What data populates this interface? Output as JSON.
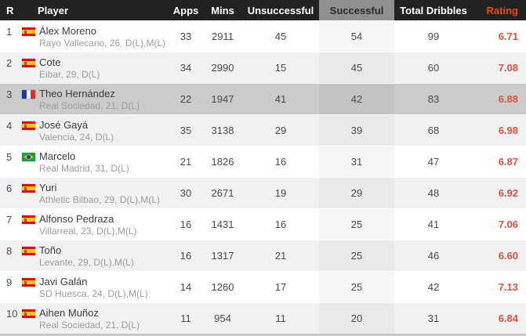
{
  "table": {
    "columns": {
      "rank": "R",
      "player": "Player",
      "apps": "Apps",
      "mins": "Mins",
      "unsuccessful": "Unsuccessful",
      "successful": "Successful",
      "total_dribbles": "Total Dribbles",
      "rating": "Rating"
    },
    "rows": [
      {
        "rank": "1",
        "flag": "spain",
        "name": "Álex Moreno",
        "meta": "Rayo Vallecano, 26, D(L),M(L)",
        "apps": "33",
        "mins": "2911",
        "unsuccessful": "45",
        "successful": "54",
        "total_dribbles": "99",
        "rating": "6.71",
        "highlighted": false
      },
      {
        "rank": "2",
        "flag": "spain",
        "name": "Cote",
        "meta": "Eibar, 29, D(L)",
        "apps": "34",
        "mins": "2990",
        "unsuccessful": "15",
        "successful": "45",
        "total_dribbles": "60",
        "rating": "7.08",
        "highlighted": false
      },
      {
        "rank": "3",
        "flag": "france",
        "name": "Theo Hernández",
        "meta": "Real Sociedad, 21, D(L)",
        "apps": "22",
        "mins": "1947",
        "unsuccessful": "41",
        "successful": "42",
        "total_dribbles": "83",
        "rating": "6.88",
        "highlighted": true
      },
      {
        "rank": "4",
        "flag": "spain",
        "name": "José Gayá",
        "meta": "Valencia, 24, D(L)",
        "apps": "35",
        "mins": "3138",
        "unsuccessful": "29",
        "successful": "39",
        "total_dribbles": "68",
        "rating": "6.98",
        "highlighted": false
      },
      {
        "rank": "5",
        "flag": "brazil",
        "name": "Marcelo",
        "meta": "Real Madrid, 31, D(L)",
        "apps": "21",
        "mins": "1826",
        "unsuccessful": "16",
        "successful": "31",
        "total_dribbles": "47",
        "rating": "6.87",
        "highlighted": false
      },
      {
        "rank": "6",
        "flag": "spain",
        "name": "Yuri",
        "meta": "Athletic Bilbao, 29, D(L),M(L)",
        "apps": "30",
        "mins": "2671",
        "unsuccessful": "19",
        "successful": "29",
        "total_dribbles": "48",
        "rating": "6.92",
        "highlighted": false
      },
      {
        "rank": "7",
        "flag": "spain",
        "name": "Alfonso Pedraza",
        "meta": "Villarreal, 23, D(L),M(L)",
        "apps": "16",
        "mins": "1431",
        "unsuccessful": "16",
        "successful": "25",
        "total_dribbles": "41",
        "rating": "7.06",
        "highlighted": false
      },
      {
        "rank": "8",
        "flag": "spain",
        "name": "Toño",
        "meta": "Levante, 29, D(L),M(L)",
        "apps": "16",
        "mins": "1317",
        "unsuccessful": "21",
        "successful": "25",
        "total_dribbles": "46",
        "rating": "6.60",
        "highlighted": false
      },
      {
        "rank": "9",
        "flag": "spain",
        "name": "Javi Galán",
        "meta": "SD Huesca, 24, D(L),M(L)",
        "apps": "14",
        "mins": "1260",
        "unsuccessful": "17",
        "successful": "25",
        "total_dribbles": "42",
        "rating": "7.13",
        "highlighted": false
      },
      {
        "rank": "10",
        "flag": "spain",
        "name": "Aihen Muñoz",
        "meta": "Real Sociedad, 21, D(L)",
        "apps": "11",
        "mins": "954",
        "unsuccessful": "11",
        "successful": "20",
        "total_dribbles": "31",
        "rating": "6.84",
        "highlighted": false
      }
    ]
  },
  "colors": {
    "header_bg": "#222222",
    "header_text": "#ffffff",
    "successful_header_bg": "#8f8f8f",
    "successful_header_text": "#2b2b2b",
    "rating_header_text": "#ea4a1a",
    "rating_value_text": "#dd5143",
    "row_bg": "#ffffff",
    "row_alt_bg": "#f2f2f2",
    "row_highlight_bg": "#cbcbcb",
    "name_text": "#3c3c3c",
    "meta_text": "#9b9b9b",
    "number_text": "#4a4a4a",
    "bottom_strip": "#c8c8c8"
  }
}
